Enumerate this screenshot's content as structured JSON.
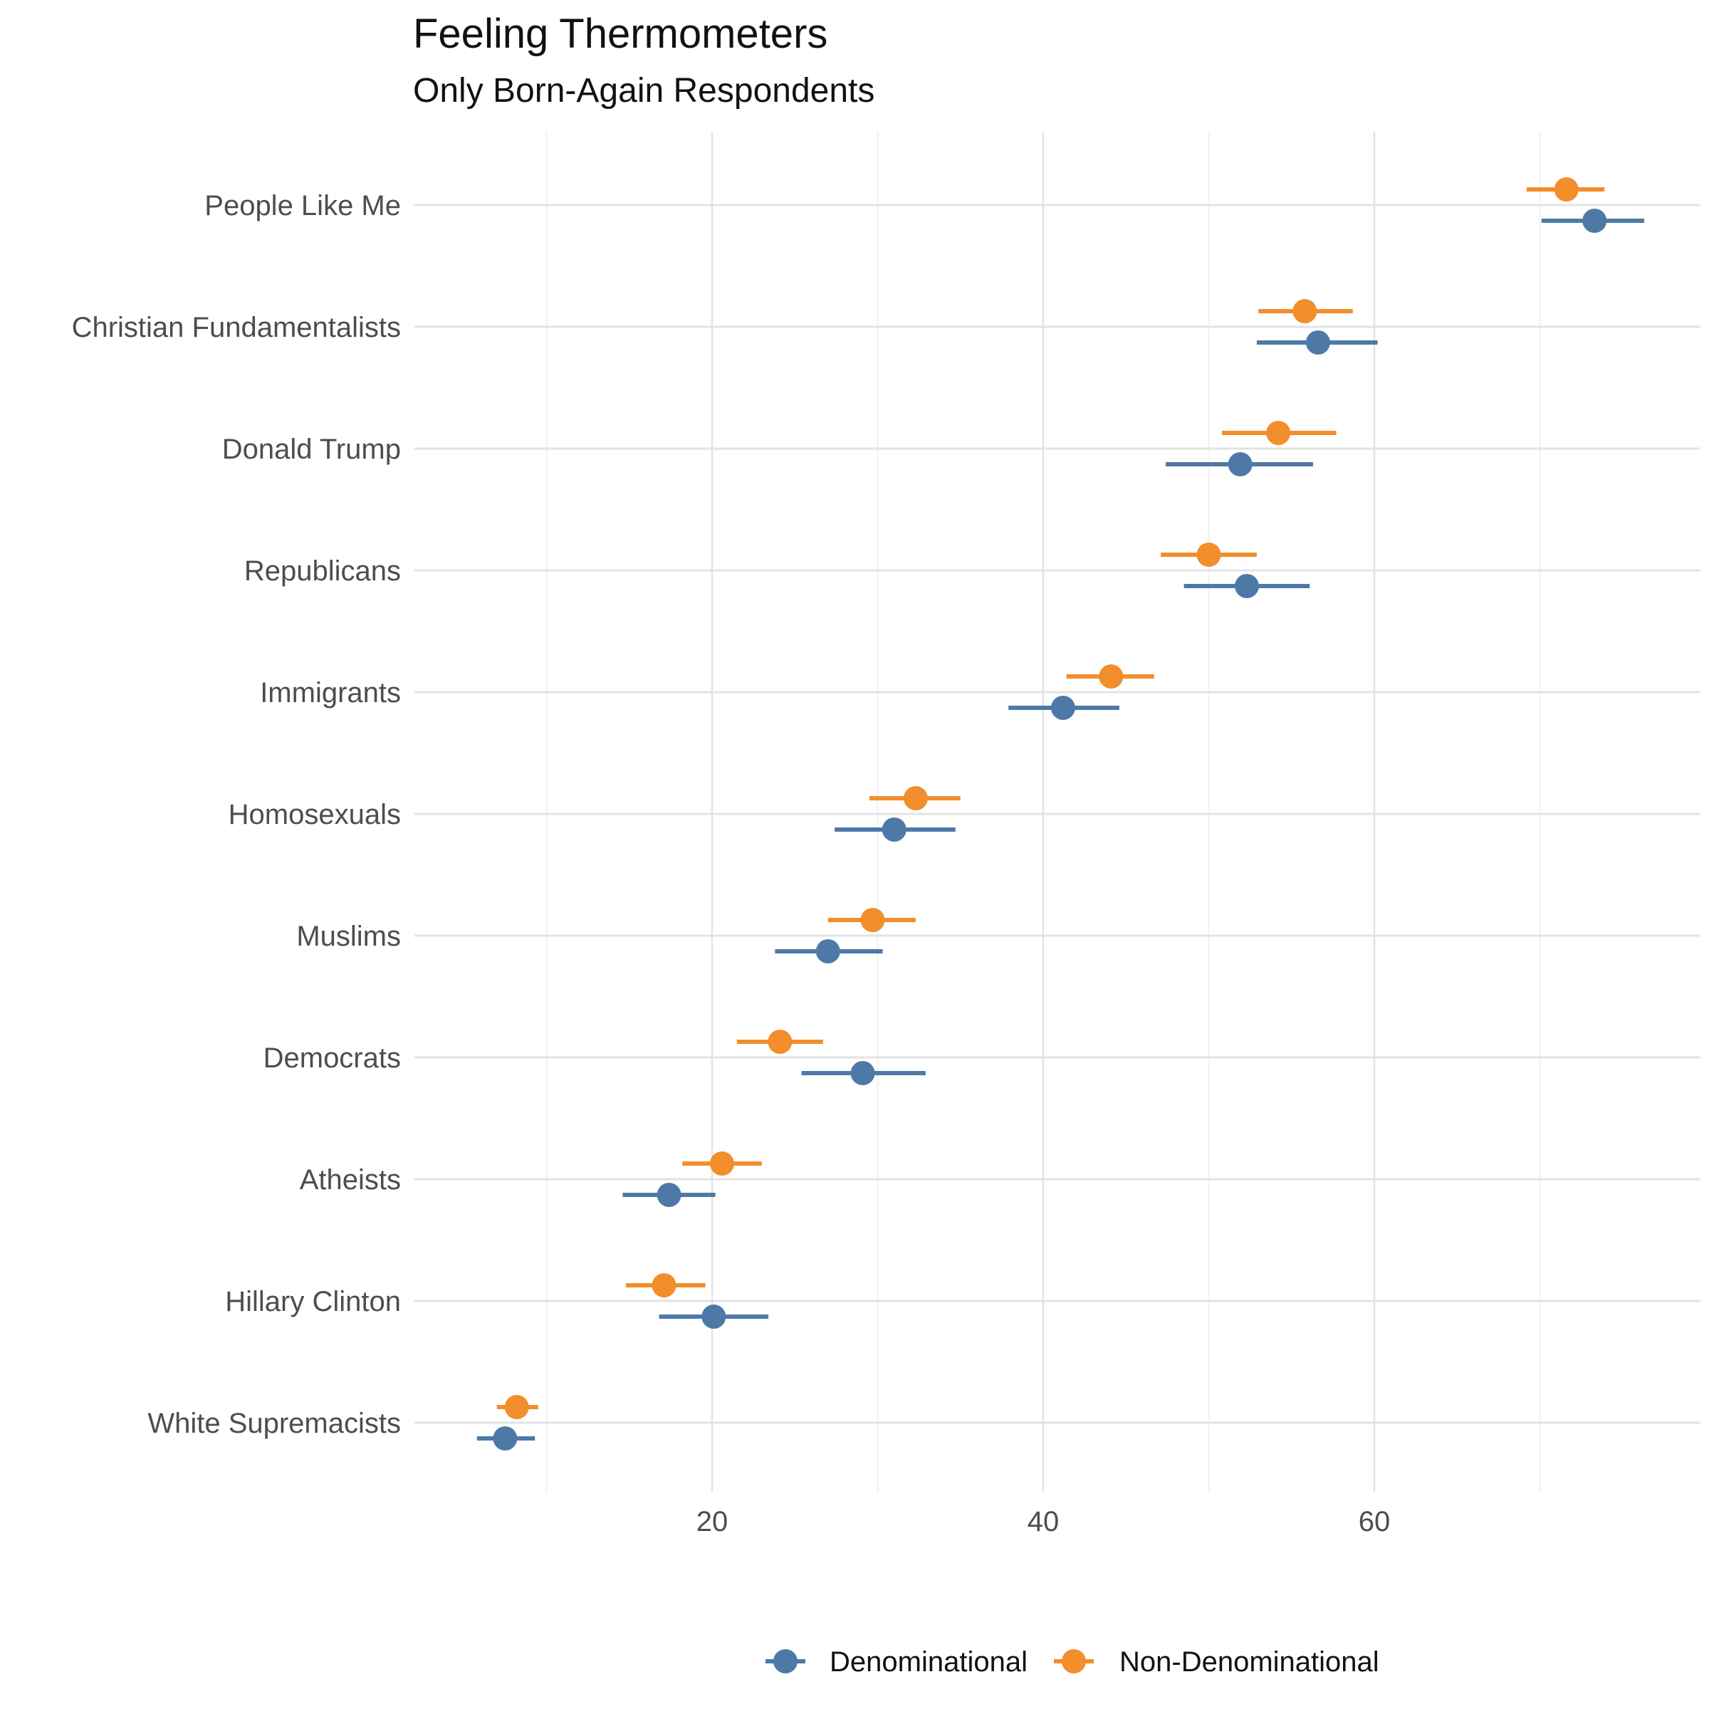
{
  "chart_data": {
    "type": "scatter",
    "title": "Feeling Thermometers",
    "subtitle": "Only Born-Again Respondents",
    "xlabel": "",
    "ylabel": "",
    "xlim": [
      0,
      78
    ],
    "x_ticks": [
      20,
      40,
      60
    ],
    "x_minor_gridlines": [
      10,
      30,
      50,
      70
    ],
    "grid": true,
    "legend_position": "bottom",
    "categories": [
      "People Like Me",
      "Christian Fundamentalists",
      "Donald Trump",
      "Republicans",
      "Immigrants",
      "Homosexuals",
      "Muslims",
      "Democrats",
      "Atheists",
      "Hillary Clinton",
      "White Supremacists"
    ],
    "series": [
      {
        "name": "Denominational",
        "color": "#4e79a7",
        "points": [
          {
            "estimate": 73.3,
            "lower": 70.1,
            "upper": 76.3
          },
          {
            "estimate": 56.6,
            "lower": 52.9,
            "upper": 60.2
          },
          {
            "estimate": 51.9,
            "lower": 47.4,
            "upper": 56.3
          },
          {
            "estimate": 52.3,
            "lower": 48.5,
            "upper": 56.1
          },
          {
            "estimate": 41.2,
            "lower": 37.9,
            "upper": 44.6
          },
          {
            "estimate": 31.0,
            "lower": 27.4,
            "upper": 34.7
          },
          {
            "estimate": 27.0,
            "lower": 23.8,
            "upper": 30.3
          },
          {
            "estimate": 29.1,
            "lower": 25.4,
            "upper": 32.9
          },
          {
            "estimate": 17.4,
            "lower": 14.6,
            "upper": 20.2
          },
          {
            "estimate": 20.1,
            "lower": 16.8,
            "upper": 23.4
          },
          {
            "estimate": 7.5,
            "lower": 5.8,
            "upper": 9.3
          }
        ]
      },
      {
        "name": "Non-Denominational",
        "color": "#f28e2b",
        "points": [
          {
            "estimate": 71.6,
            "lower": 69.2,
            "upper": 73.9
          },
          {
            "estimate": 55.8,
            "lower": 53.0,
            "upper": 58.7
          },
          {
            "estimate": 54.2,
            "lower": 50.8,
            "upper": 57.7
          },
          {
            "estimate": 50.0,
            "lower": 47.1,
            "upper": 52.9
          },
          {
            "estimate": 44.1,
            "lower": 41.4,
            "upper": 46.7
          },
          {
            "estimate": 32.3,
            "lower": 29.5,
            "upper": 35.0
          },
          {
            "estimate": 29.7,
            "lower": 27.0,
            "upper": 32.3
          },
          {
            "estimate": 24.1,
            "lower": 21.5,
            "upper": 26.7
          },
          {
            "estimate": 20.6,
            "lower": 18.2,
            "upper": 23.0
          },
          {
            "estimate": 17.1,
            "lower": 14.8,
            "upper": 19.6
          },
          {
            "estimate": 8.2,
            "lower": 7.0,
            "upper": 9.5
          }
        ]
      }
    ]
  }
}
